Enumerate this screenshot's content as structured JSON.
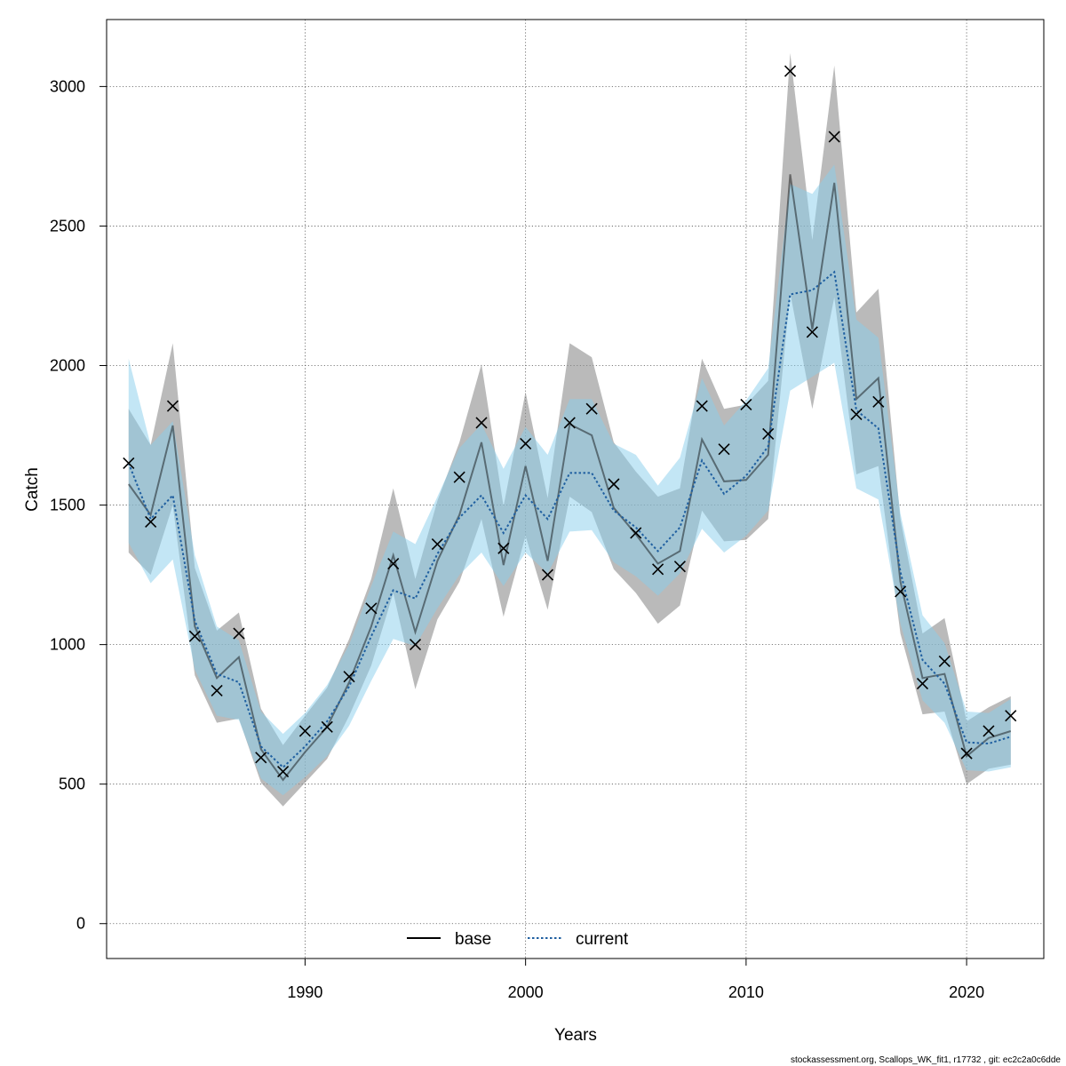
{
  "chart_data": {
    "type": "line",
    "title": "",
    "xlabel": "Years",
    "ylabel": "Catch",
    "xlim": [
      1981,
      2023.5
    ],
    "ylim": [
      -125,
      3240
    ],
    "x_ticks": [
      1990,
      2000,
      2010,
      2020
    ],
    "y_ticks": [
      0,
      500,
      1000,
      1500,
      2000,
      2500,
      3000
    ],
    "grid": true,
    "legend_position": "bottom-center",
    "colors": {
      "base_line": "#000000",
      "base_band": "#8c8c8c",
      "current_line": "#1f5fa0",
      "current_band": "#87ceeb",
      "observed": "#000000"
    },
    "years": [
      1982,
      1983,
      1984,
      1985,
      1986,
      1987,
      1988,
      1989,
      1990,
      1991,
      1992,
      1993,
      1994,
      1995,
      1996,
      1997,
      1998,
      1999,
      2000,
      2001,
      2002,
      2003,
      2004,
      2005,
      2006,
      2007,
      2008,
      2009,
      2010,
      2011,
      2012,
      2013,
      2014,
      2015,
      2016,
      2017,
      2018,
      2019,
      2020,
      2021,
      2022
    ],
    "series": [
      {
        "name": "base",
        "style": "solid",
        "values": [
          1575,
          1465,
          1785,
          1065,
          880,
          955,
          625,
          515,
          615,
          705,
          865,
          1065,
          1320,
          1045,
          1300,
          1465,
          1725,
          1285,
          1640,
          1300,
          1790,
          1750,
          1490,
          1395,
          1290,
          1335,
          1735,
          1585,
          1590,
          1680,
          2685,
          2130,
          2655,
          1880,
          1955,
          1225,
          880,
          895,
          600,
          665,
          690
        ],
        "lower": [
          1330,
          1250,
          1500,
          890,
          720,
          735,
          505,
          420,
          505,
          590,
          745,
          925,
          1185,
          840,
          1090,
          1225,
          1450,
          1100,
          1390,
          1125,
          1530,
          1475,
          1270,
          1185,
          1075,
          1140,
          1480,
          1370,
          1375,
          1450,
          2260,
          1845,
          2245,
          1610,
          1640,
          1040,
          750,
          760,
          500,
          555,
          570
        ],
        "upper": [
          1845,
          1715,
          2080,
          1275,
          1050,
          1115,
          770,
          640,
          745,
          845,
          1020,
          1235,
          1560,
          1235,
          1515,
          1725,
          2005,
          1495,
          1905,
          1525,
          2080,
          2030,
          1725,
          1620,
          1530,
          1560,
          2025,
          1845,
          1860,
          1945,
          3120,
          2450,
          3075,
          2190,
          2275,
          1450,
          1040,
          1095,
          725,
          775,
          815
        ]
      },
      {
        "name": "current",
        "style": "dotted",
        "values": [
          1650,
          1450,
          1535,
          1085,
          895,
          865,
          635,
          560,
          635,
          725,
          850,
          1030,
          1195,
          1165,
          1325,
          1455,
          1535,
          1400,
          1535,
          1450,
          1615,
          1615,
          1480,
          1420,
          1335,
          1420,
          1660,
          1540,
          1605,
          1710,
          2255,
          2270,
          2335,
          1840,
          1775,
          1260,
          945,
          860,
          650,
          645,
          670
        ],
        "lower": [
          1365,
          1220,
          1305,
          910,
          745,
          730,
          520,
          460,
          525,
          600,
          710,
          870,
          1020,
          995,
          1130,
          1250,
          1330,
          1210,
          1330,
          1255,
          1405,
          1410,
          1295,
          1245,
          1175,
          1255,
          1415,
          1330,
          1390,
          1480,
          1910,
          1960,
          2010,
          1560,
          1520,
          1075,
          800,
          720,
          550,
          545,
          560
        ],
        "upper": [
          2025,
          1715,
          1800,
          1320,
          1065,
          1015,
          760,
          680,
          755,
          855,
          1000,
          1210,
          1405,
          1360,
          1530,
          1705,
          1790,
          1630,
          1780,
          1680,
          1880,
          1880,
          1720,
          1680,
          1570,
          1670,
          1955,
          1785,
          1875,
          1990,
          2650,
          2615,
          2720,
          2165,
          2100,
          1470,
          1105,
          1005,
          760,
          755,
          805
        ]
      }
    ],
    "observed": {
      "marker": "x",
      "values": [
        1650,
        1440,
        1855,
        1030,
        835,
        1040,
        595,
        545,
        690,
        705,
        885,
        1130,
        1290,
        1000,
        1360,
        1600,
        1795,
        1345,
        1720,
        1250,
        1795,
        1845,
        1575,
        1400,
        1270,
        1280,
        1855,
        1700,
        1860,
        1755,
        3055,
        2120,
        2820,
        1825,
        1870,
        1190,
        860,
        940,
        610,
        690,
        745
      ]
    }
  },
  "legend": {
    "base_label": "base",
    "current_label": "current"
  },
  "footer_text": "stockassessment.org, Scallops_WK_fit1, r17732 , git: ec2c2a0c6dde"
}
